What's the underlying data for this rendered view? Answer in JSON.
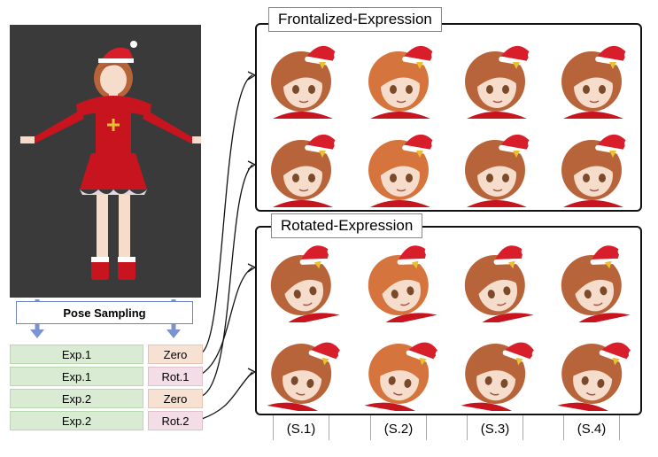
{
  "left": {
    "pose_sampling_label": "Pose Sampling",
    "rows": [
      {
        "exp": "Exp.1",
        "rot": "Zero"
      },
      {
        "exp": "Exp.1",
        "rot": "Rot.1"
      },
      {
        "exp": "Exp.2",
        "rot": "Zero"
      },
      {
        "exp": "Exp.2",
        "rot": "Rot.2"
      }
    ]
  },
  "panels": {
    "frontalized_title": "Frontalized-Expression",
    "rotated_title": "Rotated-Expression"
  },
  "captions": [
    "(S.1)",
    "(S.2)",
    "(S.3)",
    "(S.4)"
  ],
  "colors": {
    "hair": "#b8643a",
    "skin": "#f6dccb",
    "hat_red": "#d81e2a",
    "outfit_red": "#c8141e",
    "background_dark": "#3a3a3a"
  }
}
